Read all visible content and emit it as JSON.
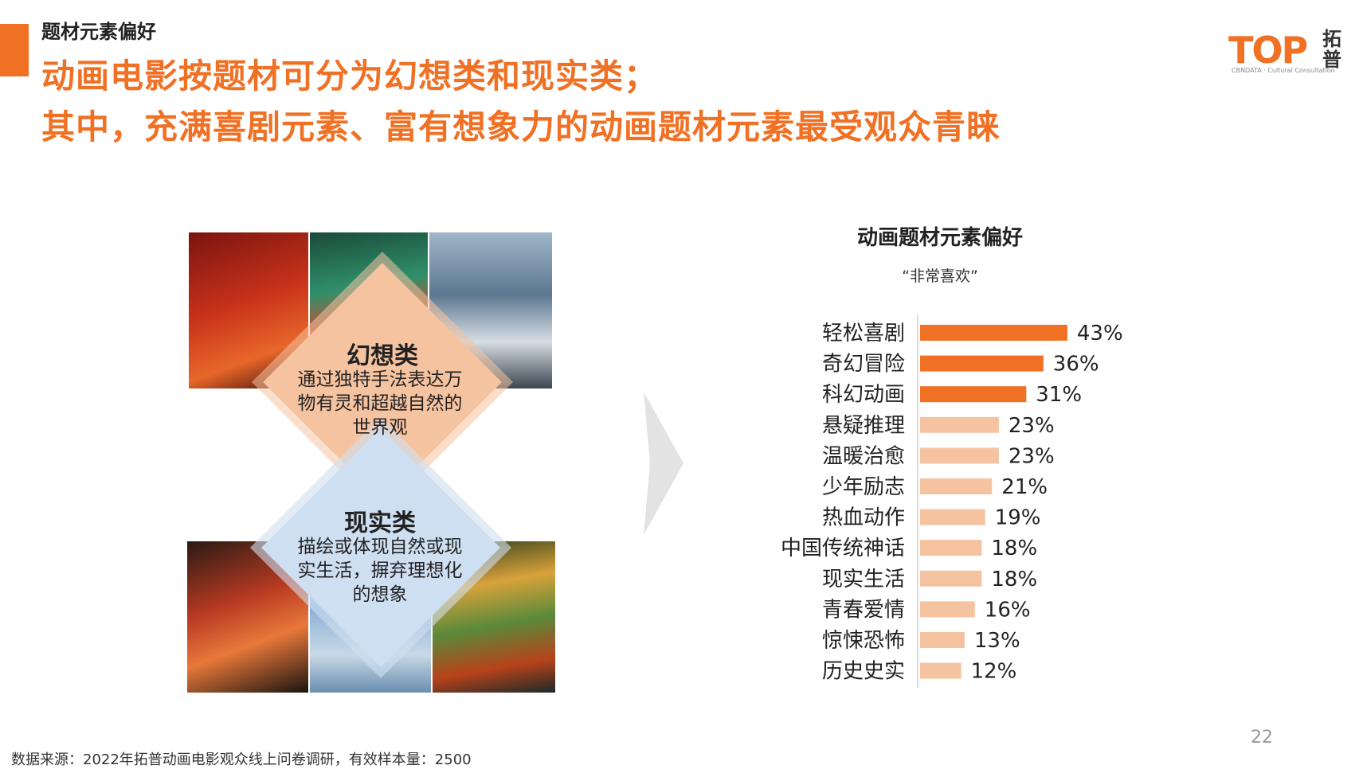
{
  "header": {
    "section_label": "题材元素偏好",
    "headline_1": "动画电影按题材可分为幻想类和现实类；",
    "headline_2": "其中，充满喜剧元素、富有想象力的动画题材元素最受观众青睐"
  },
  "logo": {
    "text": "TOP",
    "cn": "拓普",
    "sub": "CBNDATA · Cultural Consultation"
  },
  "categories_panel": {
    "fantasy": {
      "title": "幻想类",
      "desc": "通过独特手法表达万物有灵和超越自然的世界观"
    },
    "reality": {
      "title": "现实类",
      "desc": "描绘或体现自然或现实生活，摒弃理想化的想象"
    }
  },
  "chart_data": {
    "type": "bar",
    "orientation": "horizontal",
    "title": "动画题材元素偏好",
    "subtitle": "“非常喜欢”",
    "categories": [
      "轻松喜剧",
      "奇幻冒险",
      "科幻动画",
      "悬疑推理",
      "温暖治愈",
      "少年励志",
      "热血动作",
      "中国传统神话",
      "现实生活",
      "青春爱情",
      "惊悚恐怖",
      "历史史实"
    ],
    "values": [
      43,
      36,
      31,
      23,
      23,
      21,
      19,
      18,
      18,
      16,
      13,
      12
    ],
    "value_labels": [
      "43%",
      "36%",
      "31%",
      "23%",
      "23%",
      "21%",
      "19%",
      "18%",
      "18%",
      "16%",
      "13%",
      "12%"
    ],
    "highlight_count": 3,
    "colors": {
      "highlight": "#f07024",
      "normal": "#f6c3a1"
    },
    "xlim": [
      0,
      50
    ]
  },
  "footer": {
    "source": "数据来源：2022年拓普动画电影观众线上问卷调研，有效样本量：2500",
    "page": "22"
  }
}
